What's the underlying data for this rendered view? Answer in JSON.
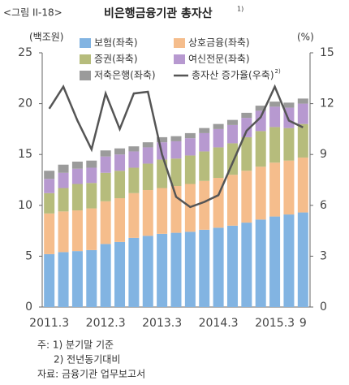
{
  "chart_data": {
    "type": "bar",
    "stacked": true,
    "figure_label": "<그림 II-18>",
    "title": "비은행금융기관 총자산",
    "title_note": "1)",
    "y_unit": "(백조원)",
    "y2_unit": "(%)",
    "categories": [
      "2011.3",
      null,
      null,
      null,
      "2012.3",
      null,
      null,
      null,
      "2013.3",
      null,
      null,
      null,
      "2014.3",
      null,
      null,
      null,
      "2015.3",
      null,
      "9"
    ],
    "series": [
      {
        "name": "보험(좌축)",
        "color": "#82b4e2",
        "values": [
          5.2,
          5.4,
          5.5,
          5.6,
          6.2,
          6.4,
          6.8,
          7.0,
          7.2,
          7.3,
          7.4,
          7.6,
          7.8,
          8.0,
          8.3,
          8.6,
          8.9,
          9.1,
          9.3
        ]
      },
      {
        "name": "상호금융(좌축)",
        "color": "#f5bd8c",
        "values": [
          4.0,
          4.0,
          4.0,
          4.1,
          4.2,
          4.3,
          4.4,
          4.5,
          4.5,
          4.6,
          4.7,
          4.8,
          4.9,
          5.0,
          5.1,
          5.2,
          5.3,
          5.3,
          5.4
        ]
      },
      {
        "name": "증권(좌축)",
        "color": "#b6bc7c",
        "values": [
          2.0,
          2.3,
          2.6,
          2.5,
          2.8,
          2.7,
          2.5,
          2.6,
          2.8,
          2.7,
          2.8,
          2.9,
          3.0,
          3.1,
          3.3,
          3.5,
          3.5,
          3.2,
          3.3
        ]
      },
      {
        "name": "여신전문(좌축)",
        "color": "#b799d0",
        "values": [
          1.4,
          1.5,
          1.5,
          1.5,
          1.6,
          1.6,
          1.6,
          1.6,
          1.7,
          1.7,
          1.7,
          1.8,
          1.8,
          1.8,
          1.9,
          2.0,
          2.0,
          2.0,
          2.0
        ]
      },
      {
        "name": "저축은행(좌축)",
        "color": "#9b9b9b",
        "values": [
          0.8,
          0.8,
          0.7,
          0.7,
          0.6,
          0.6,
          0.5,
          0.5,
          0.5,
          0.5,
          0.5,
          0.5,
          0.5,
          0.5,
          0.5,
          0.5,
          0.5,
          0.5,
          0.5
        ]
      },
      {
        "name": "총자산 증가율(우축)",
        "name_note": "2)",
        "type": "line",
        "axis": "y2",
        "color": "#555555",
        "values": [
          11.7,
          13.0,
          11.0,
          9.3,
          12.6,
          10.5,
          12.6,
          12.7,
          9.0,
          6.5,
          5.9,
          6.2,
          6.6,
          8.5,
          10.4,
          11.2,
          13.0,
          11.0,
          10.6
        ]
      }
    ],
    "ylim": [
      0,
      25
    ],
    "yticks": [
      0,
      5,
      10,
      15,
      20,
      25
    ],
    "y2lim": [
      0,
      15
    ],
    "y2ticks": [
      0,
      3,
      6,
      9,
      12,
      15
    ],
    "notes": [
      "주: 1) 분기말 기준",
      "2) 전년동기대비",
      "자료: 금융기관 업무보고서"
    ]
  }
}
